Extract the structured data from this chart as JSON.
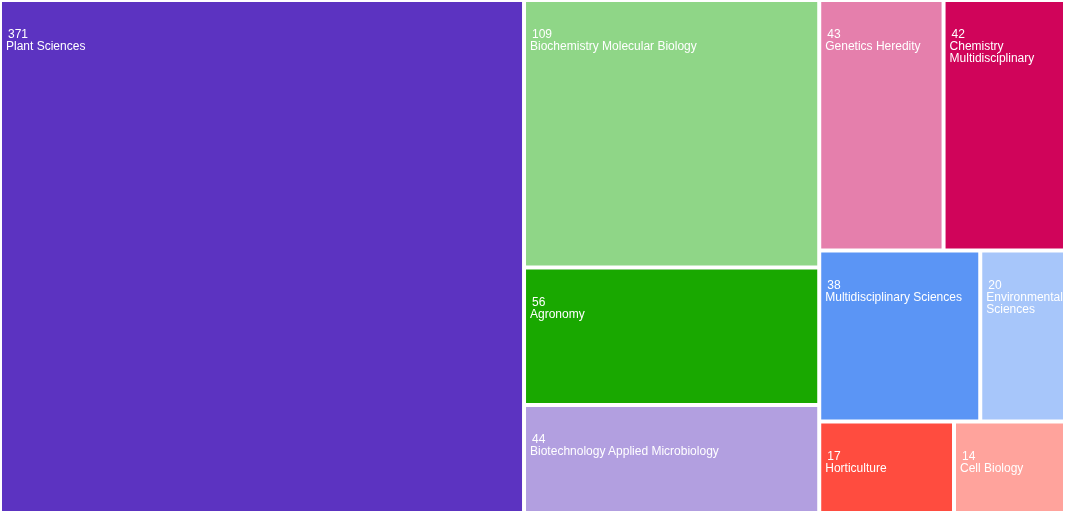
{
  "chart_data": {
    "type": "other",
    "categories": [
      "Plant Sciences",
      "Biochemistry Molecular Biology",
      "Agronomy",
      "Biotechnology Applied Microbiology",
      "Genetics Heredity",
      "Chemistry Multidisciplinary",
      "Multidisciplinary Sciences",
      "Environmental Sciences",
      "Horticulture",
      "Cell Biology"
    ],
    "values": [
      371,
      109,
      56,
      44,
      43,
      42,
      38,
      20,
      17,
      14
    ],
    "colors": [
      "#5c33c1",
      "#8fd687",
      "#19a800",
      "#b29fe0",
      "#e57fac",
      "#d0045a",
      "#5b95f5",
      "#a7c6fa",
      "#ff4c3f",
      "#ffa39c"
    ],
    "data_labels": true
  }
}
